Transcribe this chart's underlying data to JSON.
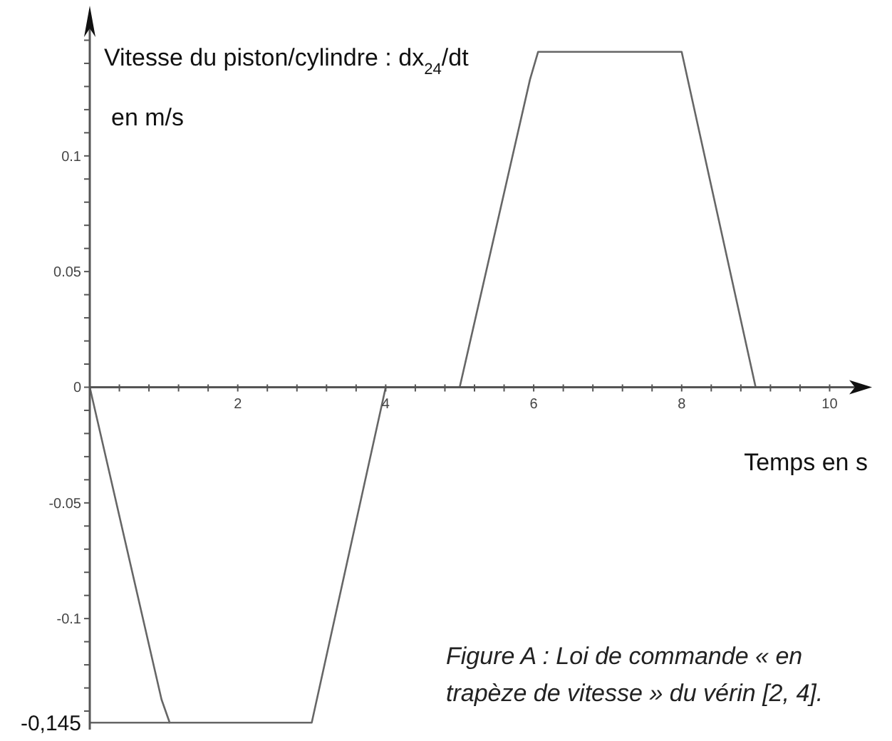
{
  "chart_data": {
    "type": "line",
    "ylabel": "Vitesse du piston/cylindre : dx$_{24}$/dt\nen m/s",
    "xlabel": "Temps en s",
    "annotations": [
      "Figure A : Loi de commande « en trapèze de vitesse » du vérin [2, 4]."
    ],
    "x": [
      0,
      0.97,
      1.08,
      3,
      4,
      5,
      5.95,
      6.06,
      8,
      9
    ],
    "values": [
      0,
      -0.135,
      -0.145,
      -0.145,
      0,
      0,
      0.133,
      0.145,
      0.145,
      0
    ],
    "color": "#666666",
    "xlim": [
      0,
      10.4
    ],
    "xticks": [
      {
        "value": 0.4,
        "label": null
      },
      {
        "value": 0.8,
        "label": null
      },
      {
        "value": 1.2,
        "label": null
      },
      {
        "value": 1.6,
        "label": null
      },
      2,
      {
        "value": 2.4,
        "label": null
      },
      {
        "value": 2.8,
        "label": null
      },
      {
        "value": 3.2,
        "label": null
      },
      {
        "value": 3.6,
        "label": null
      },
      4,
      {
        "value": 4.4,
        "label": null
      },
      {
        "value": 4.8,
        "label": null
      },
      {
        "value": 5.2,
        "label": null
      },
      {
        "value": 5.6,
        "label": null
      },
      6,
      {
        "value": 6.4,
        "label": null
      },
      {
        "value": 6.8,
        "label": null
      },
      {
        "value": 7.2,
        "label": null
      },
      {
        "value": 7.6,
        "label": null
      },
      8,
      {
        "value": 8.4,
        "label": null
      },
      {
        "value": 8.8,
        "label": null
      },
      {
        "value": 9.2,
        "label": null
      },
      {
        "value": 9.6,
        "label": null
      },
      10
    ],
    "ylim": [
      -0.148,
      0.16
    ],
    "yticks": [
      {
        "value": -0.14,
        "label": null
      },
      {
        "value": -0.13,
        "label": null
      },
      {
        "value": -0.12,
        "label": null
      },
      {
        "value": -0.11,
        "label": null
      },
      -0.1,
      {
        "value": -0.09,
        "label": null
      },
      {
        "value": -0.08,
        "label": null
      },
      {
        "value": -0.07,
        "label": null
      },
      {
        "value": -0.06,
        "label": null
      },
      -0.05,
      {
        "value": -0.04,
        "label": null
      },
      {
        "value": -0.03,
        "label": null
      },
      {
        "value": -0.02,
        "label": null
      },
      {
        "value": -0.01,
        "label": null
      },
      0,
      {
        "value": 0.01,
        "label": null
      },
      {
        "value": 0.02,
        "label": null
      },
      {
        "value": 0.03,
        "label": null
      },
      {
        "value": 0.04,
        "label": null
      },
      0.05,
      {
        "value": 0.06,
        "label": null
      },
      {
        "value": 0.07,
        "label": null
      },
      {
        "value": 0.08,
        "label": null
      },
      {
        "value": 0.09,
        "label": null
      },
      0.1,
      {
        "value": 0.11,
        "label": null
      },
      {
        "value": 0.12,
        "label": null
      },
      {
        "value": 0.13,
        "label": null
      },
      {
        "value": 0.14,
        "label": null
      },
      {
        "value": 0.15,
        "label": null
      }
    ],
    "ref_lines": [
      {
        "axis": "y",
        "value": -0.145,
        "label": "-0,145"
      }
    ]
  }
}
